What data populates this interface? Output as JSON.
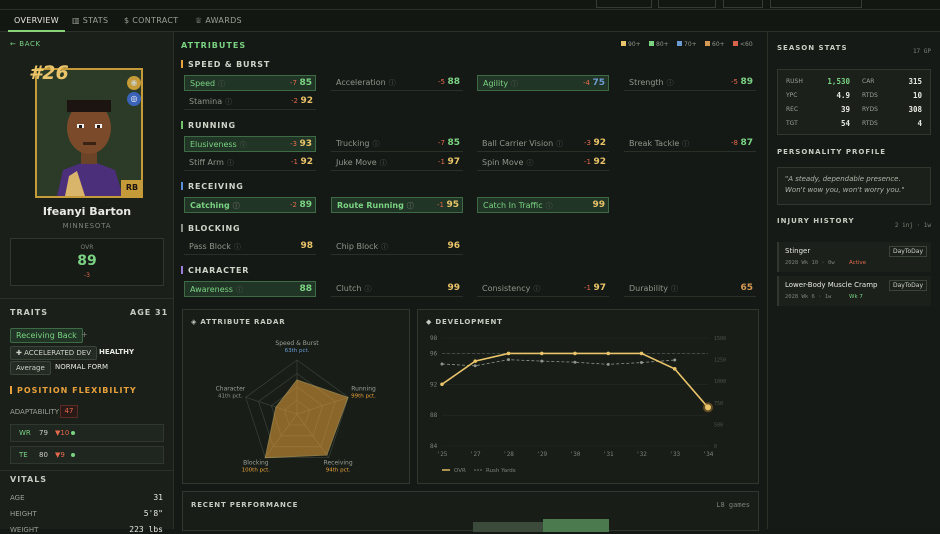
{
  "tabs": [
    {
      "label": "OVERVIEW",
      "icon": "none"
    },
    {
      "label": "STATS",
      "icon": "bar-chart-icon"
    },
    {
      "label": "CONTRACT",
      "icon": "dollar-icon"
    },
    {
      "label": "AWARDS",
      "icon": "trophy-icon"
    }
  ],
  "back_label": "BACK",
  "player": {
    "number": "#26",
    "name": "Ifeanyi Barton",
    "team": "MINNESOTA",
    "position": "RB",
    "ovr_label": "OVR",
    "ovr": "89",
    "ovr_delta": "-3"
  },
  "traits": {
    "title": "TRAITS",
    "age_label": "AGE 31",
    "chips": [
      "Receiving Back",
      "ACCELERATED DEV",
      "HEALTHY",
      "Average",
      "NORMAL FORM"
    ],
    "extra": "+"
  },
  "position_flex": {
    "title": "POSITION FLEXIBILITY",
    "adaptability_label": "ADAPTABILITY",
    "adaptability": "47",
    "rows": [
      {
        "pos": "WR",
        "val": "79",
        "delta": "▼10"
      },
      {
        "pos": "TE",
        "val": "80",
        "delta": "▼9"
      }
    ]
  },
  "vitals": {
    "title": "VITALS",
    "rows": [
      {
        "k": "AGE",
        "v": "31"
      },
      {
        "k": "HEIGHT",
        "v": "5'8\""
      },
      {
        "k": "WEIGHT",
        "v": "223 lbs"
      }
    ]
  },
  "attributes": {
    "title": "ATTRIBUTES",
    "legend": [
      {
        "label": "90+",
        "color": "#e9c46a"
      },
      {
        "label": "80+",
        "color": "#7bd283"
      },
      {
        "label": "70+",
        "color": "#6c9bd2"
      },
      {
        "label": "60+",
        "color": "#d49a55"
      },
      {
        "label": "<60",
        "color": "#d8624a"
      }
    ],
    "categories": [
      {
        "name": "SPEED & BURST",
        "color": "#e9a23b",
        "rows": [
          [
            {
              "n": "Speed",
              "d": "-7",
              "v": "85",
              "hl": true
            },
            {
              "n": "Acceleration",
              "d": "-5",
              "v": "88"
            },
            {
              "n": "Agility",
              "d": "-4",
              "v": "75",
              "hl": true
            },
            {
              "n": "Strength",
              "d": "-5",
              "v": "89"
            }
          ],
          [
            {
              "n": "Stamina",
              "d": "-2",
              "v": "92"
            }
          ]
        ]
      },
      {
        "name": "RUNNING",
        "color": "#6fc46a",
        "rows": [
          [
            {
              "n": "Elusiveness",
              "d": "-3",
              "v": "93",
              "hl": true
            },
            {
              "n": "Trucking",
              "d": "-7",
              "v": "85"
            },
            {
              "n": "Ball Carrier Vision",
              "d": "-3",
              "v": "92"
            },
            {
              "n": "Break Tackle",
              "d": "-8",
              "v": "87"
            }
          ],
          [
            {
              "n": "Stiff Arm",
              "d": "-1",
              "v": "92"
            },
            {
              "n": "Juke Move",
              "d": "-1",
              "v": "97"
            },
            {
              "n": "Spin Move",
              "d": "-1",
              "v": "92"
            }
          ]
        ]
      },
      {
        "name": "RECEIVING",
        "color": "#5a8fd6",
        "rows": [
          [
            {
              "n": "Catching",
              "d": "-2",
              "v": "89",
              "hl": true,
              "bold": true
            },
            {
              "n": "Route Running",
              "d": "-1",
              "v": "95",
              "hl": true,
              "bold": true
            },
            {
              "n": "Catch In Traffic",
              "d": "",
              "v": "99",
              "hl": true
            }
          ]
        ]
      },
      {
        "name": "BLOCKING",
        "color": "#8a8f86",
        "rows": [
          [
            {
              "n": "Pass Block",
              "d": "",
              "v": "98"
            },
            {
              "n": "Chip Block",
              "d": "",
              "v": "96"
            }
          ]
        ]
      },
      {
        "name": "CHARACTER",
        "color": "#9b7fd6",
        "rows": [
          [
            {
              "n": "Awareness",
              "d": "",
              "v": "88",
              "hl": true
            },
            {
              "n": "Clutch",
              "d": "",
              "v": "99"
            },
            {
              "n": "Consistency",
              "d": "-1",
              "v": "97"
            },
            {
              "n": "Durability",
              "d": "",
              "v": "65"
            }
          ]
        ]
      }
    ]
  },
  "radar": {
    "title": "ATTRIBUTE RADAR",
    "axes": [
      {
        "label": "Speed & Burst",
        "pct": "63th pct."
      },
      {
        "label": "Running",
        "pct": "99th pct."
      },
      {
        "label": "Receiving",
        "pct": "94th pct."
      },
      {
        "label": "Blocking",
        "pct": "100th pct."
      },
      {
        "label": "Character",
        "pct": "41th pct."
      }
    ],
    "values": [
      63,
      99,
      94,
      100,
      41
    ]
  },
  "development": {
    "title": "DEVELOPMENT",
    "chart_data": {
      "type": "line",
      "x": [
        "'25",
        "'27",
        "'28",
        "'29",
        "'30",
        "'31",
        "'32",
        "'33",
        "'34"
      ],
      "series": [
        {
          "name": "OVR",
          "values": [
            92,
            95,
            96,
            96,
            96,
            96,
            96,
            94,
            89
          ]
        },
        {
          "name": "Rush Yards",
          "values": [
            1000,
            950,
            1120,
            1080,
            1050,
            990,
            1040,
            1110,
            null
          ]
        }
      ],
      "yticks_left": [
        "98",
        "96",
        "92",
        "88",
        "84"
      ],
      "yticks_right": [
        "1500",
        "1250",
        "1000",
        "750",
        "500",
        "0"
      ],
      "ylim": [
        84,
        98
      ]
    },
    "legend": [
      "OVR",
      "Rush Yards"
    ]
  },
  "recent": {
    "title": "RECENT PERFORMANCE",
    "games": "L8 games"
  },
  "season": {
    "title": "SEASON STATS",
    "gp": "17 GP",
    "rows": [
      {
        "k1": "RUSH",
        "v1": "1,530",
        "k2": "CAR",
        "v2": "315"
      },
      {
        "k1": "YPC",
        "v1": "4.9",
        "k2": "RTDS",
        "v2": "10"
      },
      {
        "k1": "REC",
        "v1": "39",
        "k2": "RYDS",
        "v2": "308"
      },
      {
        "k1": "TGT",
        "v1": "54",
        "k2": "RTDS",
        "v2": "4"
      }
    ]
  },
  "personality": {
    "title": "PERSONALITY PROFILE",
    "quote": "\"A steady, dependable presence. Won't wow you, won't worry you.\""
  },
  "injury": {
    "title": "INJURY HISTORY",
    "summary": "2 inj · 1w",
    "items": [
      {
        "name": "Stinger",
        "meta": "2028 Wk 10 · 0w",
        "status": "Active",
        "badge": "DayToDay"
      },
      {
        "name": "Lower-Body Muscle Cramp",
        "meta": "2028 Wk 6 · 1w",
        "status": "Wk 7",
        "badge": "DayToDay"
      }
    ]
  }
}
